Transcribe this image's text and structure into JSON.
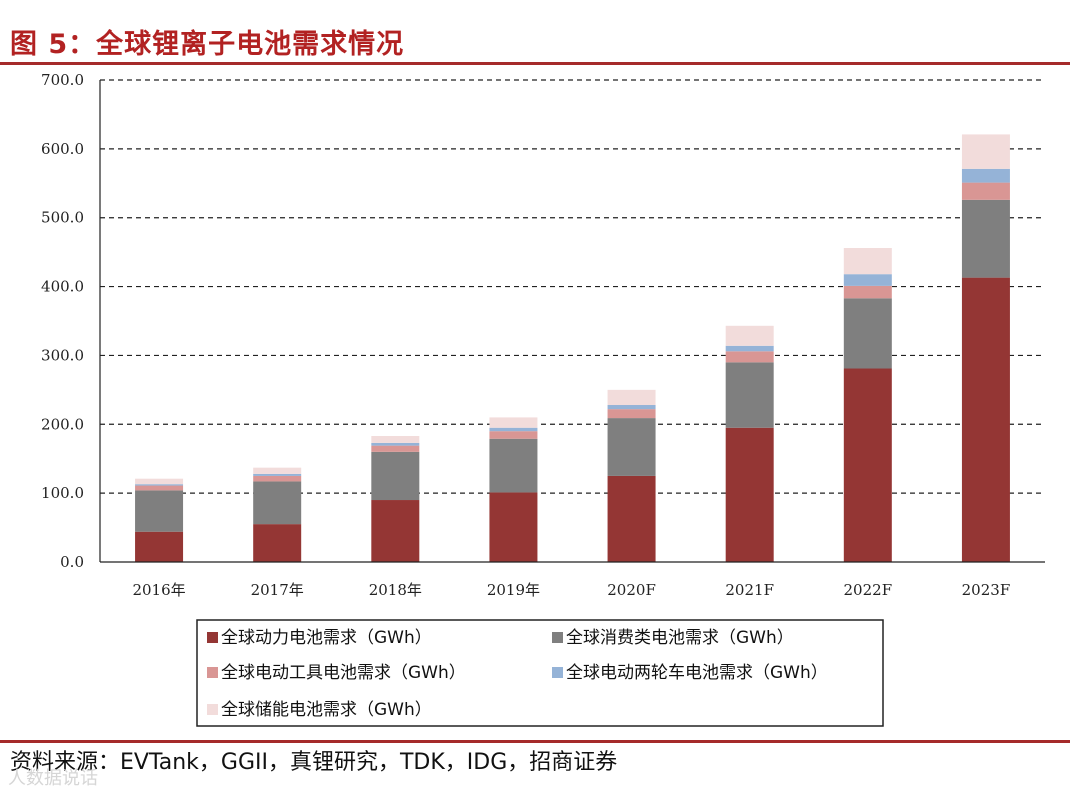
{
  "figure": {
    "title": "图 5：全球锂离子电池需求情况",
    "source": "资料来源：EVTank，GGII，真锂研究，TDK，IDG，招商证券",
    "watermark": "人数据说话"
  },
  "chart_data": {
    "type": "bar",
    "stacked": true,
    "categories": [
      "2016年",
      "2017年",
      "2018年",
      "2019年",
      "2020F",
      "2021F",
      "2022F",
      "2023F"
    ],
    "ylim": [
      0,
      700
    ],
    "yticks": [
      "0.0",
      "100.0",
      "200.0",
      "300.0",
      "400.0",
      "500.0",
      "600.0",
      "700.0"
    ],
    "ytick_values": [
      0,
      100,
      200,
      300,
      400,
      500,
      600,
      700
    ],
    "grid": "dashed horizontal",
    "legend_position": "bottom",
    "series": [
      {
        "name": "全球动力电池需求（GWh）",
        "color": "#943634",
        "values": [
          44,
          55,
          90,
          101,
          125,
          195,
          281,
          413
        ]
      },
      {
        "name": "全球消费类电池需求（GWh）",
        "color": "#7f7f7f",
        "values": [
          60,
          62,
          70,
          78,
          84,
          95,
          102,
          113
        ]
      },
      {
        "name": "全球电动工具电池需求（GWh）",
        "color": "#d99694",
        "values": [
          7,
          8,
          9,
          11,
          13,
          16,
          18,
          25
        ]
      },
      {
        "name": "全球电动两轮车电池需求（GWh）",
        "color": "#95b3d7",
        "values": [
          2,
          3,
          4,
          5,
          6,
          8,
          17,
          20
        ]
      },
      {
        "name": "全球储能电池需求（GWh）",
        "color": "#f2dcdb",
        "values": [
          8,
          9,
          10,
          15,
          22,
          29,
          38,
          50
        ]
      }
    ]
  }
}
